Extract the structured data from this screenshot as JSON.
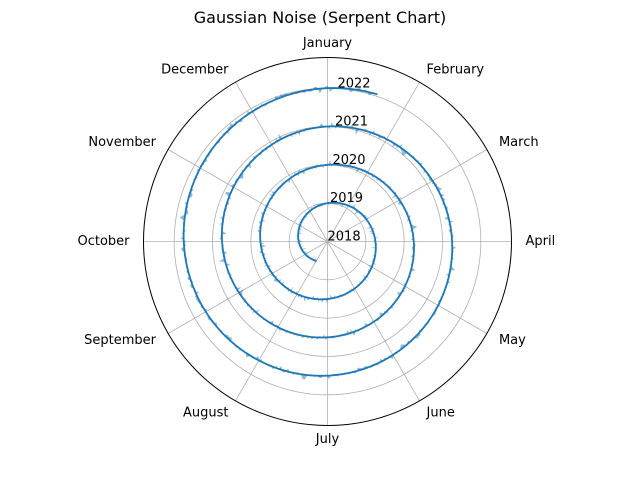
{
  "chart_data": {
    "type": "polar-area",
    "title": "Gaussian Noise (Serpent Chart)",
    "angular_labels": [
      "January",
      "February",
      "March",
      "April",
      "May",
      "June",
      "July",
      "August",
      "September",
      "October",
      "November",
      "December"
    ],
    "angular_direction": "clockwise",
    "angular_zero": "top",
    "radial_labels": [
      "2018",
      "2019",
      "2020",
      "2021",
      "2022"
    ],
    "r_range": [
      2018,
      2022.8
    ],
    "date_range": [
      "2018-08-01",
      "2022-01-20"
    ],
    "series": [
      {
        "name": "",
        "kind": "line"
      },
      {
        "name": "",
        "kind": "area",
        "noise": "gaussian",
        "noise_sigma_years": 0.05
      }
    ],
    "grid": true,
    "legend": "none"
  },
  "style": {
    "line_color": "#1f77b4",
    "fill_color": "#1f77b4",
    "fill_opacity": 0.5,
    "grid_color": "#b0b0b0",
    "frame_color": "#000000"
  }
}
